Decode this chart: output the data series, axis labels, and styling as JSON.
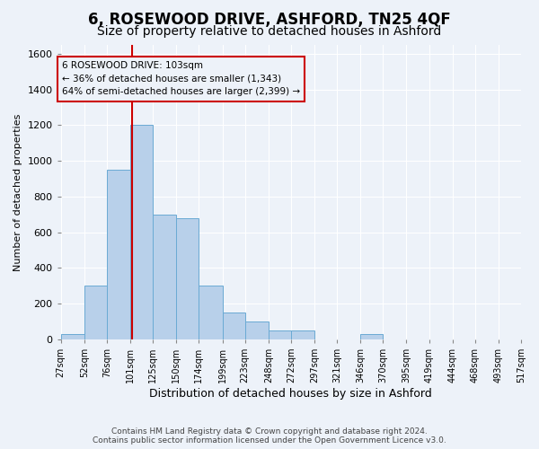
{
  "title": "6, ROSEWOOD DRIVE, ASHFORD, TN25 4QF",
  "subtitle": "Size of property relative to detached houses in Ashford",
  "xlabel": "Distribution of detached houses by size in Ashford",
  "ylabel": "Number of detached properties",
  "footer_line1": "Contains HM Land Registry data © Crown copyright and database right 2024.",
  "footer_line2": "Contains public sector information licensed under the Open Government Licence v3.0.",
  "bin_labels": [
    "27sqm",
    "52sqm",
    "76sqm",
    "101sqm",
    "125sqm",
    "150sqm",
    "174sqm",
    "199sqm",
    "223sqm",
    "248sqm",
    "272sqm",
    "297sqm",
    "321sqm",
    "346sqm",
    "370sqm",
    "395sqm",
    "419sqm",
    "444sqm",
    "468sqm",
    "493sqm",
    "517sqm"
  ],
  "bar_values": [
    30,
    300,
    950,
    1200,
    700,
    680,
    300,
    150,
    100,
    50,
    50,
    0,
    0,
    30,
    0,
    0,
    0,
    0,
    0,
    0,
    0
  ],
  "bar_color": "#b8d0ea",
  "bar_edge_color": "#6aaad4",
  "ylim": [
    0,
    1650
  ],
  "yticks": [
    0,
    200,
    400,
    600,
    800,
    1000,
    1200,
    1400,
    1600
  ],
  "property_line_x": 103,
  "property_line_color": "#cc0000",
  "annotation_text_line1": "6 ROSEWOOD DRIVE: 103sqm",
  "annotation_text_line2": "← 36% of detached houses are smaller (1,343)",
  "annotation_text_line3": "64% of semi-detached houses are larger (2,399) →",
  "annotation_box_edgecolor": "#cc0000",
  "background_color": "#edf2f9",
  "grid_color": "#ffffff",
  "title_fontsize": 12,
  "subtitle_fontsize": 10,
  "ylabel_fontsize": 8,
  "xlabel_fontsize": 9
}
